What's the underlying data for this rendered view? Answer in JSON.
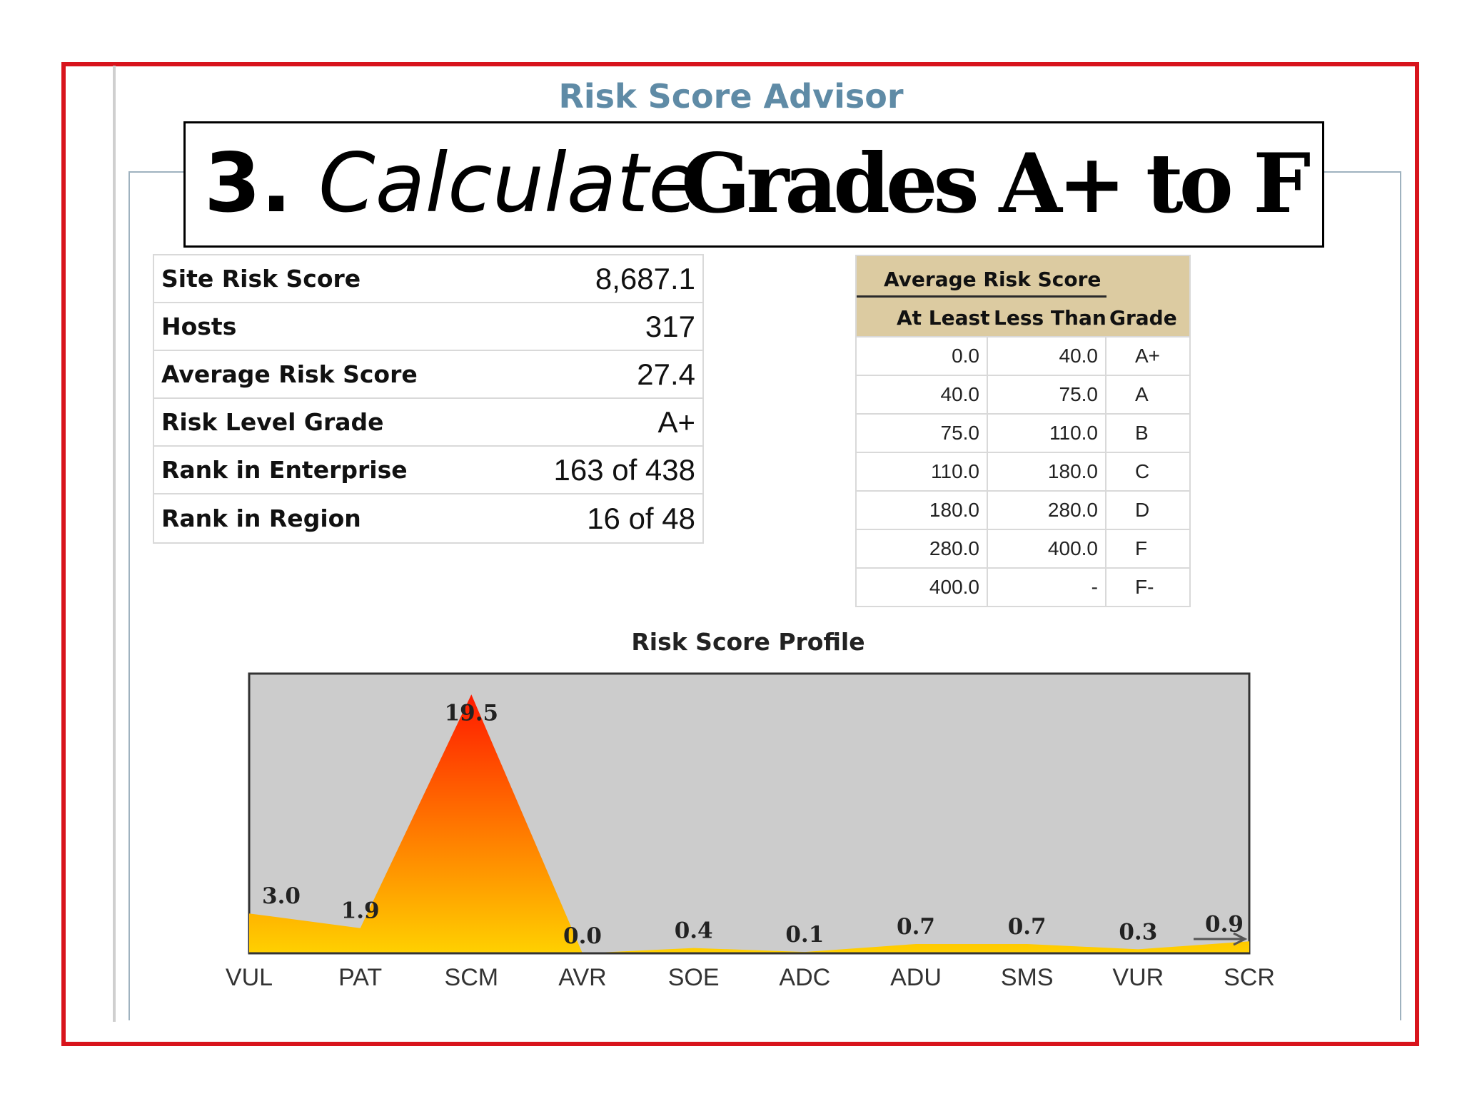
{
  "advisor_title": "Risk Score Advisor",
  "banner": {
    "number": "3.",
    "italic": "Calculate",
    "bold": "Grades A+ to F -"
  },
  "summary": [
    {
      "label": "Site Risk Score",
      "value": "8,687.1"
    },
    {
      "label": "Hosts",
      "value": "317"
    },
    {
      "label": "Average Risk Score",
      "value": "27.4"
    },
    {
      "label": "Risk Level Grade",
      "value": "A+"
    },
    {
      "label": "Rank in Enterprise",
      "value": "163 of 438"
    },
    {
      "label": "Rank in Region",
      "value": "16 of 48"
    }
  ],
  "grade_table": {
    "group_header": "Average Risk Score",
    "col_at_least": "At Least",
    "col_less_than": "Less Than",
    "col_grade": "Grade",
    "rows": [
      {
        "at_least": "0.0",
        "less_than": "40.0",
        "grade": "A+"
      },
      {
        "at_least": "40.0",
        "less_than": "75.0",
        "grade": "A"
      },
      {
        "at_least": "75.0",
        "less_than": "110.0",
        "grade": "B"
      },
      {
        "at_least": "110.0",
        "less_than": "180.0",
        "grade": "C"
      },
      {
        "at_least": "180.0",
        "less_than": "280.0",
        "grade": "D"
      },
      {
        "at_least": "280.0",
        "less_than": "400.0",
        "grade": "F"
      },
      {
        "at_least": "400.0",
        "less_than": "-",
        "grade": "F-"
      }
    ]
  },
  "chart_data": {
    "type": "area",
    "title": "Risk Score Profile",
    "categories": [
      "VUL",
      "PAT",
      "SCM",
      "AVR",
      "SOE",
      "ADC",
      "ADU",
      "SMS",
      "VUR",
      "SCR"
    ],
    "values": [
      3.0,
      1.9,
      19.5,
      0.0,
      0.4,
      0.1,
      0.7,
      0.7,
      0.3,
      0.9
    ],
    "value_labels": [
      "3.0",
      "1.9",
      "19.5",
      "0.0",
      "0.4",
      "0.1",
      "0.7",
      "0.7",
      "0.3",
      "0.9"
    ],
    "ylim": [
      0,
      20
    ],
    "plot_background": "#cccccc",
    "fill_gradient": [
      "#ff1a00",
      "#ffd000"
    ]
  }
}
